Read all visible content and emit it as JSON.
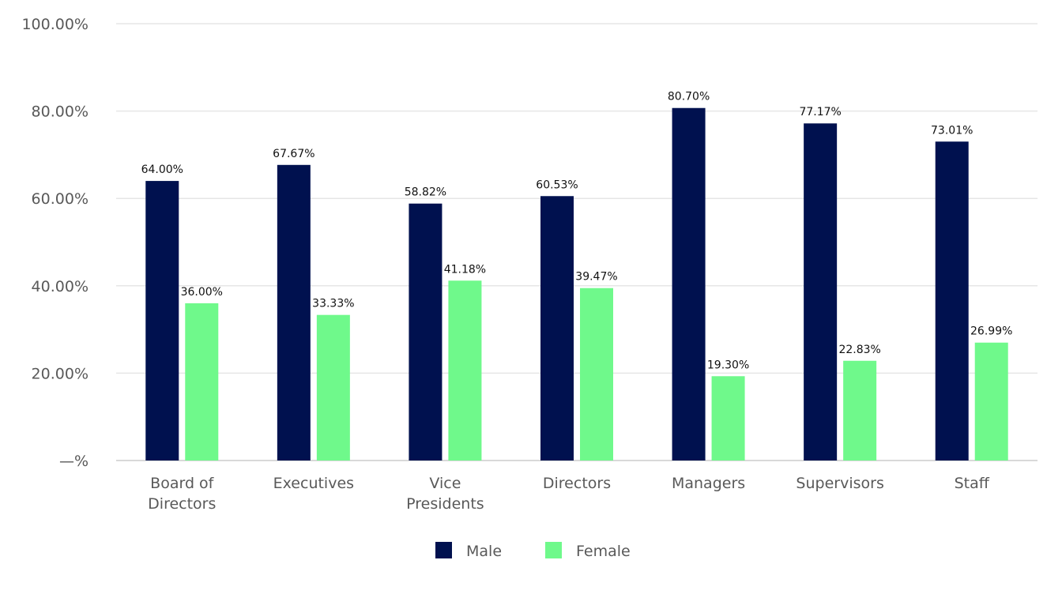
{
  "chart_data": {
    "type": "bar",
    "categories": [
      [
        "Board of",
        "Directors"
      ],
      [
        "Executives"
      ],
      [
        "Vice",
        "Presidents"
      ],
      [
        "Directors"
      ],
      [
        "Managers"
      ],
      [
        "Supervisors"
      ],
      [
        "Staff"
      ]
    ],
    "series": [
      {
        "name": "Male",
        "color": "#00114f",
        "values": [
          64.0,
          67.67,
          58.82,
          60.53,
          80.7,
          77.17,
          73.01
        ]
      },
      {
        "name": "Female",
        "color": "#6ff98b",
        "values": [
          36.0,
          33.33,
          41.18,
          39.47,
          19.3,
          22.83,
          26.99
        ]
      }
    ],
    "data_labels": [
      [
        "64.00%",
        "67.67%",
        "58.82%",
        "60.53%",
        "80.70%",
        "77.17%",
        "73.01%"
      ],
      [
        "36.00%",
        "33.33%",
        "41.18%",
        "39.47%",
        "19.30%",
        "22.83%",
        "26.99%"
      ]
    ],
    "y_ticks": [
      0,
      20,
      40,
      60,
      80,
      100
    ],
    "y_tick_labels": [
      "—%",
      "20.00%",
      "40.00%",
      "60.00%",
      "80.00%",
      "100.00%"
    ],
    "ylim": [
      0,
      100
    ],
    "grid": true,
    "legend_position": "bottom"
  }
}
